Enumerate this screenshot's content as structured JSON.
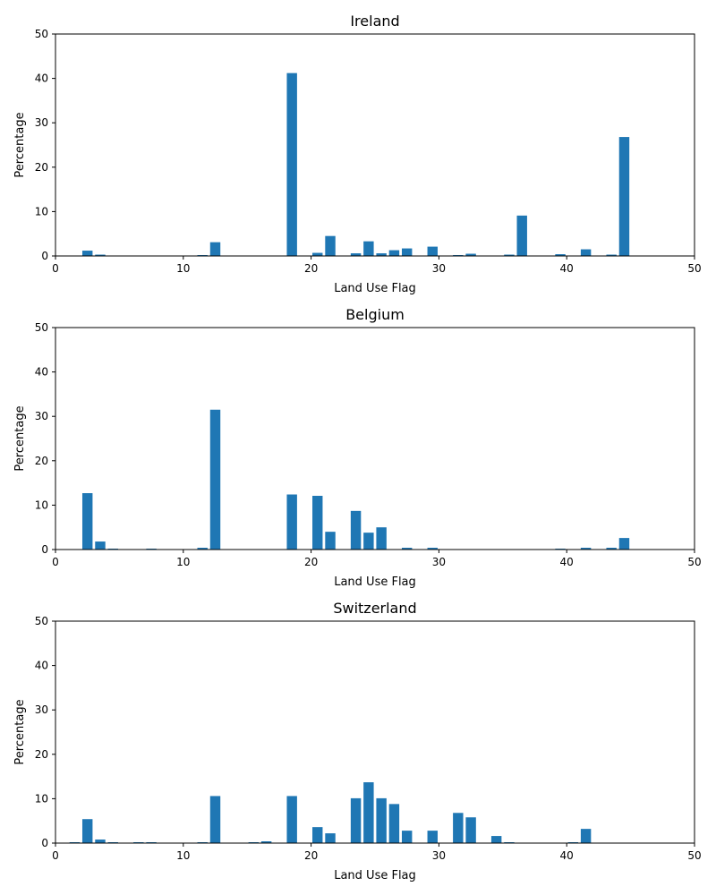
{
  "colors": {
    "bar": "#1f77b4",
    "axis": "#000000",
    "background": "#ffffff"
  },
  "chart_data": [
    {
      "type": "bar",
      "title": "Ireland",
      "xlabel": "Land Use Flag",
      "ylabel": "Percentage",
      "xlim": [
        0,
        50
      ],
      "ylim": [
        0,
        50
      ],
      "xticks": [
        0,
        10,
        20,
        30,
        40,
        50
      ],
      "yticks": [
        0,
        10,
        20,
        30,
        40,
        50
      ],
      "grid": false,
      "bars": [
        {
          "x": 2.5,
          "value": 1.2
        },
        {
          "x": 3.5,
          "value": 0.3
        },
        {
          "x": 11.5,
          "value": 0.2
        },
        {
          "x": 12.5,
          "value": 3.1
        },
        {
          "x": 18.5,
          "value": 41.2
        },
        {
          "x": 20.5,
          "value": 0.7
        },
        {
          "x": 21.5,
          "value": 4.5
        },
        {
          "x": 23.5,
          "value": 0.6
        },
        {
          "x": 24.5,
          "value": 3.3
        },
        {
          "x": 25.5,
          "value": 0.6
        },
        {
          "x": 26.5,
          "value": 1.3
        },
        {
          "x": 27.5,
          "value": 1.7
        },
        {
          "x": 29.5,
          "value": 2.1
        },
        {
          "x": 31.5,
          "value": 0.2
        },
        {
          "x": 32.5,
          "value": 0.5
        },
        {
          "x": 35.5,
          "value": 0.3
        },
        {
          "x": 36.5,
          "value": 9.1
        },
        {
          "x": 39.5,
          "value": 0.4
        },
        {
          "x": 41.5,
          "value": 1.5
        },
        {
          "x": 43.5,
          "value": 0.3
        },
        {
          "x": 44.5,
          "value": 26.8
        }
      ]
    },
    {
      "type": "bar",
      "title": "Belgium",
      "xlabel": "Land Use Flag",
      "ylabel": "Percentage",
      "xlim": [
        0,
        50
      ],
      "ylim": [
        0,
        50
      ],
      "xticks": [
        0,
        10,
        20,
        30,
        40,
        50
      ],
      "yticks": [
        0,
        10,
        20,
        30,
        40,
        50
      ],
      "grid": false,
      "bars": [
        {
          "x": 2.5,
          "value": 12.7
        },
        {
          "x": 3.5,
          "value": 1.8
        },
        {
          "x": 4.5,
          "value": 0.2
        },
        {
          "x": 7.5,
          "value": 0.2
        },
        {
          "x": 11.5,
          "value": 0.4
        },
        {
          "x": 12.5,
          "value": 31.5
        },
        {
          "x": 18.5,
          "value": 12.4
        },
        {
          "x": 20.5,
          "value": 12.1
        },
        {
          "x": 21.5,
          "value": 4.0
        },
        {
          "x": 23.5,
          "value": 8.7
        },
        {
          "x": 24.5,
          "value": 3.8
        },
        {
          "x": 25.5,
          "value": 5.0
        },
        {
          "x": 27.5,
          "value": 0.4
        },
        {
          "x": 29.5,
          "value": 0.4
        },
        {
          "x": 39.5,
          "value": 0.2
        },
        {
          "x": 41.5,
          "value": 0.4
        },
        {
          "x": 43.5,
          "value": 0.4
        },
        {
          "x": 44.5,
          "value": 2.6
        }
      ]
    },
    {
      "type": "bar",
      "title": "Switzerland",
      "xlabel": "Land Use Flag",
      "ylabel": "Percentage",
      "xlim": [
        0,
        50
      ],
      "ylim": [
        0,
        50
      ],
      "xticks": [
        0,
        10,
        20,
        30,
        40,
        50
      ],
      "yticks": [
        0,
        10,
        20,
        30,
        40,
        50
      ],
      "grid": false,
      "bars": [
        {
          "x": 1.5,
          "value": 0.2
        },
        {
          "x": 2.5,
          "value": 5.4
        },
        {
          "x": 3.5,
          "value": 0.8
        },
        {
          "x": 4.5,
          "value": 0.2
        },
        {
          "x": 6.5,
          "value": 0.2
        },
        {
          "x": 7.5,
          "value": 0.2
        },
        {
          "x": 11.5,
          "value": 0.2
        },
        {
          "x": 12.5,
          "value": 10.6
        },
        {
          "x": 15.5,
          "value": 0.2
        },
        {
          "x": 16.5,
          "value": 0.4
        },
        {
          "x": 18.5,
          "value": 10.6
        },
        {
          "x": 20.5,
          "value": 3.6
        },
        {
          "x": 21.5,
          "value": 2.2
        },
        {
          "x": 23.5,
          "value": 10.1
        },
        {
          "x": 24.5,
          "value": 13.7
        },
        {
          "x": 25.5,
          "value": 10.1
        },
        {
          "x": 26.5,
          "value": 8.8
        },
        {
          "x": 27.5,
          "value": 2.8
        },
        {
          "x": 29.5,
          "value": 2.8
        },
        {
          "x": 31.5,
          "value": 6.8
        },
        {
          "x": 32.5,
          "value": 5.8
        },
        {
          "x": 34.5,
          "value": 1.6
        },
        {
          "x": 35.5,
          "value": 0.2
        },
        {
          "x": 40.5,
          "value": 0.2
        },
        {
          "x": 41.5,
          "value": 3.2
        }
      ]
    }
  ]
}
